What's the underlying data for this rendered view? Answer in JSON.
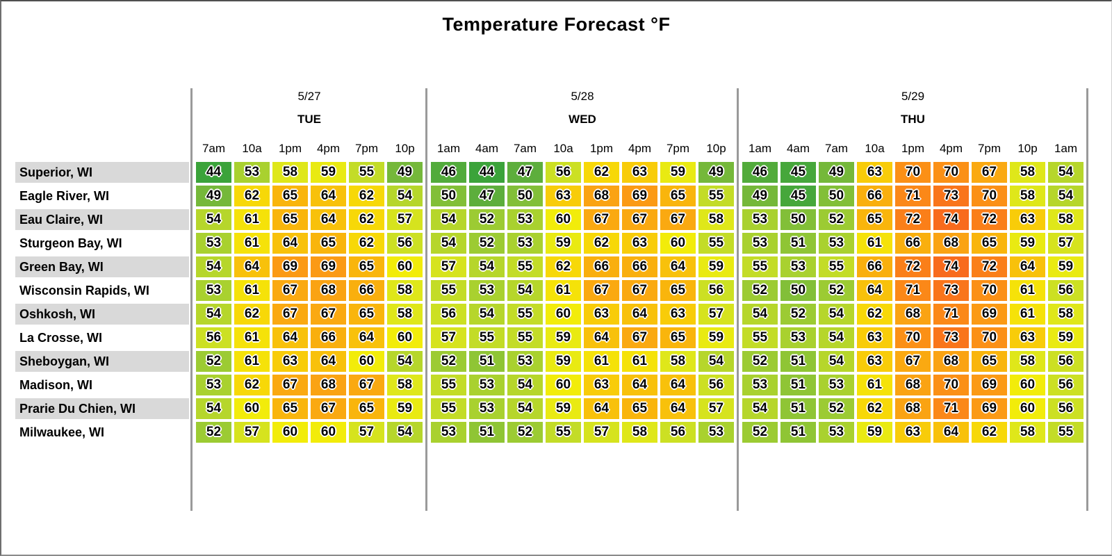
{
  "title": "Temperature Forecast °F",
  "chart_data": {
    "type": "heatmap",
    "title": "Temperature Forecast °F",
    "unit": "°F",
    "legend_position": "none",
    "value_range": [
      44,
      74
    ],
    "day_groups": [
      {
        "date": "5/27",
        "day": "TUE",
        "times": [
          "7am",
          "10a",
          "1pm",
          "4pm",
          "7pm",
          "10p"
        ]
      },
      {
        "date": "5/28",
        "day": "WED",
        "times": [
          "1am",
          "4am",
          "7am",
          "10a",
          "1pm",
          "4pm",
          "7pm",
          "10p"
        ]
      },
      {
        "date": "5/29",
        "day": "THU",
        "times": [
          "1am",
          "4am",
          "7am",
          "10a",
          "1pm",
          "4pm",
          "7pm",
          "10p",
          "1am"
        ]
      }
    ],
    "rows": [
      {
        "location": "Superior, WI",
        "temps": [
          [
            44,
            53,
            58,
            59,
            55,
            49
          ],
          [
            46,
            44,
            47,
            56,
            62,
            63,
            59,
            49
          ],
          [
            46,
            45,
            49,
            63,
            70,
            70,
            67,
            58,
            54
          ]
        ]
      },
      {
        "location": "Eagle River, WI",
        "temps": [
          [
            49,
            62,
            65,
            64,
            62,
            54
          ],
          [
            50,
            47,
            50,
            63,
            68,
            69,
            65,
            55
          ],
          [
            49,
            45,
            50,
            66,
            71,
            73,
            70,
            58,
            54
          ]
        ]
      },
      {
        "location": "Eau Claire, WI",
        "temps": [
          [
            54,
            61,
            65,
            64,
            62,
            57
          ],
          [
            54,
            52,
            53,
            60,
            67,
            67,
            67,
            58
          ],
          [
            53,
            50,
            52,
            65,
            72,
            74,
            72,
            63,
            58
          ]
        ]
      },
      {
        "location": "Sturgeon Bay, WI",
        "temps": [
          [
            53,
            61,
            64,
            65,
            62,
            56
          ],
          [
            54,
            52,
            53,
            59,
            62,
            63,
            60,
            55
          ],
          [
            53,
            51,
            53,
            61,
            66,
            68,
            65,
            59,
            57
          ]
        ]
      },
      {
        "location": "Green Bay, WI",
        "temps": [
          [
            54,
            64,
            69,
            69,
            65,
            60
          ],
          [
            57,
            54,
            55,
            62,
            66,
            66,
            64,
            59
          ],
          [
            55,
            53,
            55,
            66,
            72,
            74,
            72,
            64,
            59
          ]
        ]
      },
      {
        "location": "Wisconsin Rapids, WI",
        "temps": [
          [
            53,
            61,
            67,
            68,
            66,
            58
          ],
          [
            55,
            53,
            54,
            61,
            67,
            67,
            65,
            56
          ],
          [
            52,
            50,
            52,
            64,
            71,
            73,
            70,
            61,
            56
          ]
        ]
      },
      {
        "location": "Oshkosh, WI",
        "temps": [
          [
            54,
            62,
            67,
            67,
            65,
            58
          ],
          [
            56,
            54,
            55,
            60,
            63,
            64,
            63,
            57
          ],
          [
            54,
            52,
            54,
            62,
            68,
            71,
            69,
            61,
            58
          ]
        ]
      },
      {
        "location": "La Crosse, WI",
        "temps": [
          [
            56,
            61,
            64,
            66,
            64,
            60
          ],
          [
            57,
            55,
            55,
            59,
            64,
            67,
            65,
            59
          ],
          [
            55,
            53,
            54,
            63,
            70,
            73,
            70,
            63,
            59
          ]
        ]
      },
      {
        "location": "Sheboygan, WI",
        "temps": [
          [
            52,
            61,
            63,
            64,
            60,
            54
          ],
          [
            52,
            51,
            53,
            59,
            61,
            61,
            58,
            54
          ],
          [
            52,
            51,
            54,
            63,
            67,
            68,
            65,
            58,
            56
          ]
        ]
      },
      {
        "location": "Madison, WI",
        "temps": [
          [
            53,
            62,
            67,
            68,
            67,
            58
          ],
          [
            55,
            53,
            54,
            60,
            63,
            64,
            64,
            56
          ],
          [
            53,
            51,
            53,
            61,
            68,
            70,
            69,
            60,
            56
          ]
        ]
      },
      {
        "location": "Prarie Du Chien, WI",
        "temps": [
          [
            54,
            60,
            65,
            67,
            65,
            59
          ],
          [
            55,
            53,
            54,
            59,
            64,
            65,
            64,
            57
          ],
          [
            54,
            51,
            52,
            62,
            68,
            71,
            69,
            60,
            56
          ]
        ]
      },
      {
        "location": "Milwaukee, WI",
        "temps": [
          [
            52,
            57,
            60,
            60,
            57,
            54
          ],
          [
            53,
            51,
            52,
            55,
            57,
            58,
            56,
            53
          ],
          [
            52,
            51,
            53,
            59,
            63,
            64,
            62,
            58,
            55
          ]
        ]
      }
    ],
    "color_scale": {
      "stops": [
        [
          44,
          "#3ba33a"
        ],
        [
          48,
          "#68b23c"
        ],
        [
          52,
          "#9ccb33"
        ],
        [
          55,
          "#c3dc27"
        ],
        [
          58,
          "#dfe71a"
        ],
        [
          60,
          "#f2ec0a"
        ],
        [
          62,
          "#f7d808"
        ],
        [
          65,
          "#f9b50c"
        ],
        [
          68,
          "#faa313"
        ],
        [
          70,
          "#fb9016"
        ],
        [
          72,
          "#fa7f19"
        ],
        [
          74,
          "#f86b1d"
        ]
      ],
      "row_shading": "#d9d9d9",
      "separator": "#9a9a9a"
    }
  }
}
